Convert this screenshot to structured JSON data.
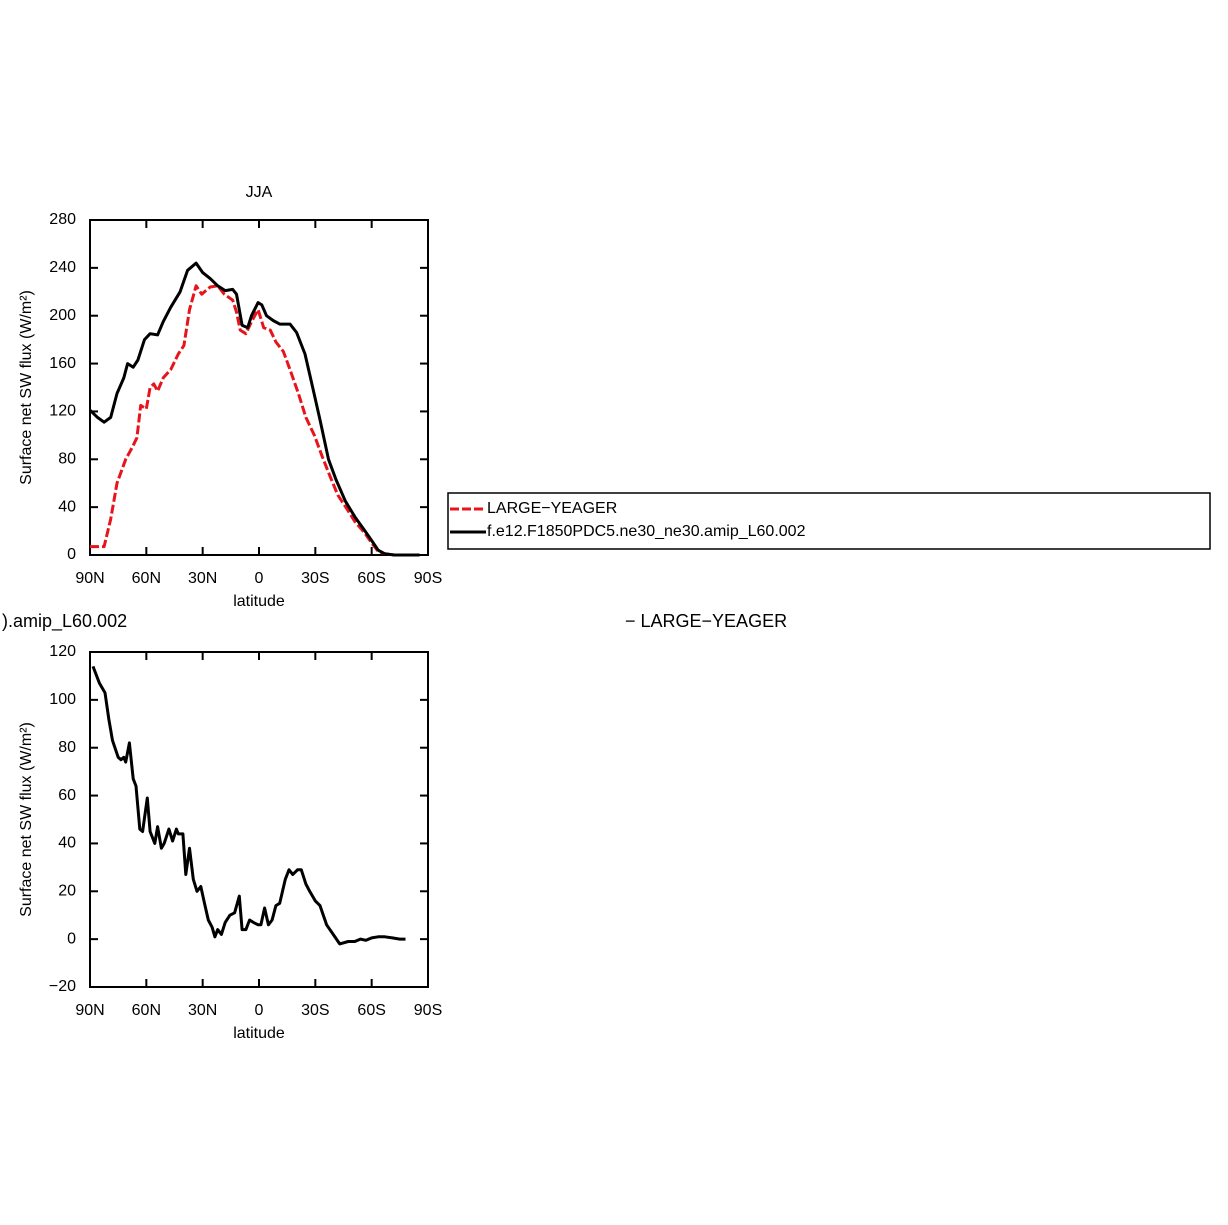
{
  "chart_data": [
    {
      "type": "line",
      "title": "JJA",
      "xlabel": "latitude",
      "ylabel": "Surface net SW flux (W/m²)",
      "xlim": [
        90,
        -90
      ],
      "ylim": [
        0,
        280
      ],
      "xticks": [
        {
          "value": 90,
          "label": "90N"
        },
        {
          "value": 60,
          "label": "60N"
        },
        {
          "value": 30,
          "label": "30N"
        },
        0,
        {
          "value": -30,
          "label": "30S"
        },
        {
          "value": -60,
          "label": "60S"
        },
        {
          "value": -90,
          "label": "90S"
        }
      ],
      "yticks": [
        0,
        40,
        80,
        120,
        160,
        200,
        240,
        280
      ],
      "legend": "right",
      "series": [
        {
          "name": "LARGE−YEAGER",
          "color": "#e8141c",
          "style": "dashed",
          "x": [
            90,
            82.5,
            79,
            75.6,
            71,
            67.5,
            65,
            63,
            60,
            58,
            56,
            54,
            51,
            47,
            43,
            40,
            37,
            33.5,
            30.5,
            26,
            22,
            18.5,
            14,
            12,
            10,
            7,
            4,
            0.5,
            -2.5,
            -6,
            -9,
            -13,
            -16.5,
            -21,
            -25,
            -29.5,
            -33.5,
            -38,
            -42,
            -47,
            -51,
            -56.5,
            -60,
            -63.5,
            -67,
            -72,
            -80
          ],
          "values": [
            7,
            7,
            30,
            60,
            80,
            90,
            98,
            125,
            122,
            140,
            143,
            137,
            148,
            155,
            168,
            175,
            205,
            225,
            218,
            224,
            225,
            218,
            213,
            203,
            188,
            185,
            195,
            205,
            190,
            188,
            178,
            170,
            155,
            135,
            115,
            100,
            83,
            65,
            50,
            38,
            28,
            18,
            10,
            3,
            1,
            0,
            0
          ]
        },
        {
          "name": "f.e12.F1850PDC5.ne30_ne30.amip_L60.002",
          "color": "#000000",
          "style": "solid",
          "x": [
            90,
            86,
            82.5,
            79,
            75.6,
            72,
            70,
            67,
            64.5,
            61,
            58,
            54,
            51,
            47,
            42,
            38,
            33.5,
            30,
            26,
            22,
            18,
            14,
            12,
            9,
            6,
            4,
            0.5,
            -1.5,
            -4,
            -7.5,
            -11,
            -16.5,
            -20,
            -24.5,
            -28,
            -32.5,
            -37,
            -41,
            -46,
            -51,
            -56.5,
            -60,
            -63.5,
            -67,
            -72,
            -80,
            -85.5
          ],
          "values": [
            121,
            115,
            111,
            115,
            135,
            148,
            160,
            157,
            163,
            180,
            185,
            184,
            195,
            207,
            220,
            238,
            244,
            236,
            231,
            225,
            221,
            222,
            218,
            192,
            190,
            200,
            211,
            209,
            200,
            196,
            193,
            193,
            186,
            168,
            144,
            113,
            80,
            63,
            45,
            32,
            20,
            12,
            4,
            1,
            0,
            0,
            0
          ]
        }
      ]
    },
    {
      "type": "line",
      "left_text": ").amip_L60.002",
      "right_text": "− LARGE−YEAGER",
      "xlabel": "latitude",
      "ylabel": "Surface net SW flux (W/m²)",
      "xlim": [
        90,
        -90
      ],
      "ylim": [
        -20,
        120
      ],
      "xticks": [
        {
          "value": 90,
          "label": "90N"
        },
        {
          "value": 60,
          "label": "60N"
        },
        {
          "value": 30,
          "label": "30N"
        },
        0,
        {
          "value": -30,
          "label": "30S"
        },
        {
          "value": -60,
          "label": "60S"
        },
        {
          "value": -90,
          "label": "90S"
        }
      ],
      "yticks": [
        {
          "value": -20,
          "label": "−20"
        },
        0,
        20,
        40,
        60,
        80,
        100,
        120
      ],
      "series": [
        {
          "color": "#000000",
          "style": "solid",
          "x": [
            88.4,
            85,
            82,
            80,
            78,
            75,
            73.5,
            72,
            71,
            69,
            67,
            65.5,
            63.5,
            62,
            59.5,
            58,
            55.5,
            54,
            52,
            50.5,
            48,
            46,
            44,
            43,
            40.5,
            39,
            37,
            35,
            33,
            31,
            29,
            27,
            25,
            23.5,
            22,
            20,
            18,
            15.5,
            13,
            10.5,
            9,
            7,
            5,
            3,
            0.5,
            -1,
            -3,
            -5,
            -7,
            -9,
            -11,
            -14,
            -16,
            -18,
            -20.5,
            -22.5,
            -25,
            -27,
            -30,
            -32.5,
            -36,
            -39.5,
            -43,
            -47.5,
            -51,
            -54,
            -57,
            -60,
            -63.5,
            -67,
            -71,
            -75,
            -78
          ],
          "values": [
            114,
            107,
            103,
            92,
            83,
            76,
            75,
            76,
            74,
            82,
            67,
            64,
            46,
            45,
            59,
            45,
            40,
            47,
            38,
            40,
            46,
            41,
            46,
            44,
            44,
            27,
            38,
            25,
            20,
            22,
            15,
            8,
            5,
            1,
            4,
            2,
            7,
            10,
            11,
            18,
            4,
            4,
            8,
            7,
            6,
            6,
            13,
            6,
            8,
            14,
            15,
            25,
            29,
            27,
            29,
            29,
            23,
            20,
            16,
            14,
            6,
            2,
            -2,
            -1,
            -1,
            0,
            -0.5,
            0.5,
            1,
            1,
            0.5,
            0,
            0
          ]
        }
      ]
    }
  ]
}
